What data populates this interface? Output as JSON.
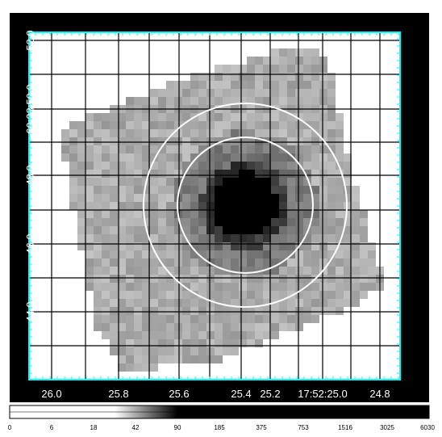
{
  "figure": {
    "x_tick_labels": [
      "26.0",
      "25.8",
      "25.6",
      "25.4",
      "25.2",
      "17:52:25.0",
      "24.8"
    ],
    "y_tick_labels": [
      "52.0",
      "60:23:50.0",
      "48.0",
      "46.0",
      "44.0"
    ],
    "colorbar_ticks": [
      "0",
      "6",
      "18",
      "42",
      "90",
      "185",
      "375",
      "753",
      "1516",
      "3025",
      "6030"
    ],
    "colors": {
      "frame_background": "#000000",
      "plot_border": "#00ffff",
      "grid_lines": "#000000",
      "region_circles": "#ffffff",
      "tick_text": "#ffffff"
    },
    "regions": [
      {
        "type": "circle",
        "label": "outer-annulus-circle"
      },
      {
        "type": "circle",
        "label": "inner-annulus-circle"
      }
    ],
    "scale": "log"
  }
}
